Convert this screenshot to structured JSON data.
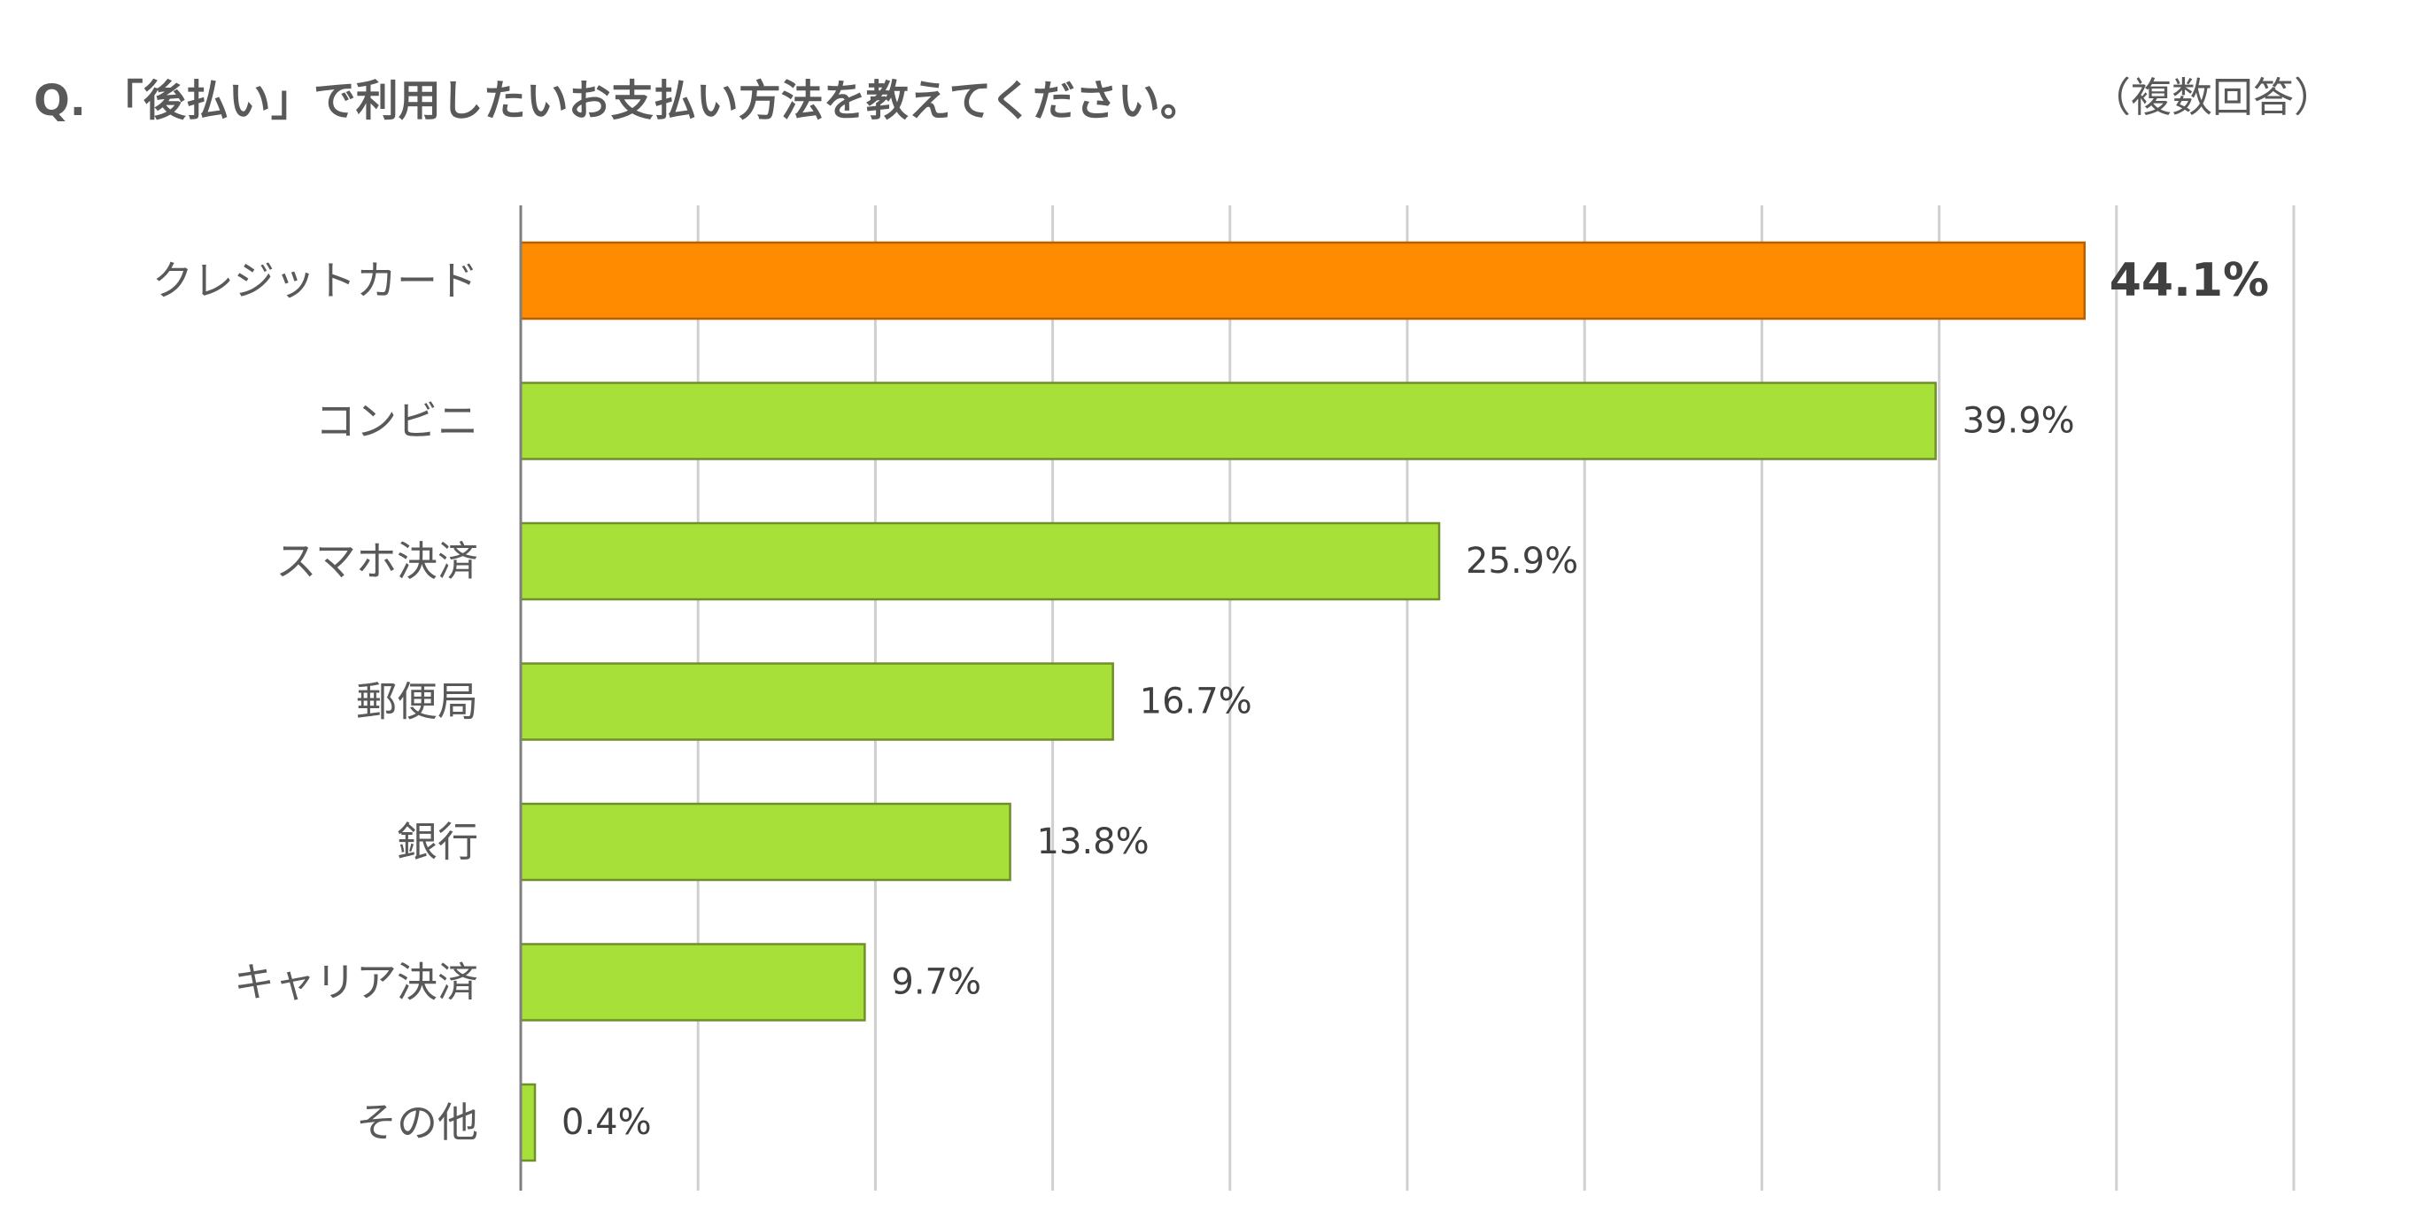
{
  "title": "Q. 「後払い」で利用したいお支払い方法を教えてください。",
  "note": "（複数回答）",
  "colors": {
    "highlight": "#FF8C00",
    "bar": "#A8E03A",
    "bar_edge": "#6E8F2A",
    "highlight_edge": "#B85F00",
    "grid": "#D0D0D0",
    "axis": "#7F7F7F"
  },
  "chart_data": {
    "type": "bar",
    "orientation": "horizontal",
    "categories": [
      "クレジットカード",
      "コンビニ",
      "スマホ決済",
      "郵便局",
      "銀行",
      "キャリア決済",
      "その他"
    ],
    "values": [
      44.1,
      39.9,
      25.9,
      16.7,
      13.8,
      9.7,
      0.4
    ],
    "value_labels": [
      "44.1%",
      "39.9%",
      "25.9%",
      "16.7%",
      "13.8%",
      "9.7%",
      "0.4%"
    ],
    "highlight_index": 0,
    "xlim": [
      0,
      50
    ],
    "grid": true,
    "unit": "%"
  }
}
